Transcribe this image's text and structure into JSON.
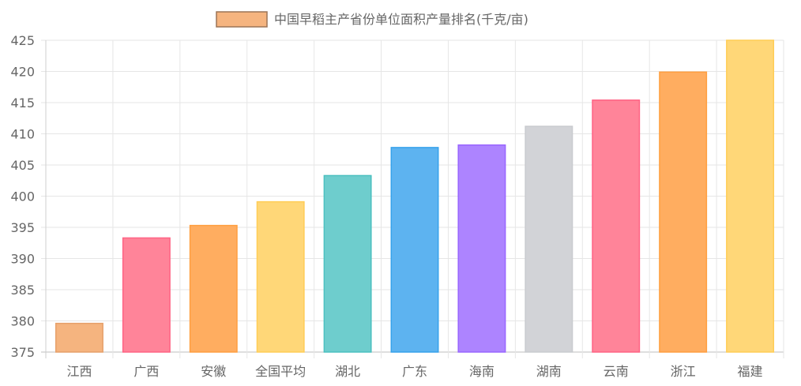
{
  "chart_data": {
    "type": "bar",
    "categories": [
      "江西",
      "广西",
      "安徽",
      "全国平均",
      "湖北",
      "广东",
      "海南",
      "湖南",
      "云南",
      "浙江",
      "福建"
    ],
    "series": [
      {
        "name": "中国早稻主产省份单位面积产量排名(千克/亩)",
        "values": [
          379.6,
          393.3,
          395.3,
          399.1,
          403.3,
          407.8,
          408.2,
          411.2,
          415.4,
          419.9,
          425.0
        ]
      }
    ],
    "yticks": [
      "375",
      "380",
      "385",
      "390",
      "395",
      "400",
      "405",
      "410",
      "415",
      "420",
      "425"
    ],
    "ylim": [
      375,
      425
    ],
    "grid": true,
    "legend_position": "top-center",
    "bar_fill_colors": [
      "#f5b47f",
      "#ff8499",
      "#ffad60",
      "#ffd778",
      "#6ecdcd",
      "#5db3f0",
      "#ad84ff",
      "#d2d3d7",
      "#ff8499",
      "#ffad60",
      "#ffd778"
    ],
    "bar_border_colors": [
      "#e6a06a",
      "#ff6384",
      "#ff9f40",
      "#ffcd56",
      "#4bc0c0",
      "#36a2eb",
      "#9966ff",
      "#c9cbcf",
      "#ff6384",
      "#ff9f40",
      "#ffcd56"
    ],
    "legend_fill_color": "#f5b47f",
    "legend_border_color": "#9c7457"
  }
}
